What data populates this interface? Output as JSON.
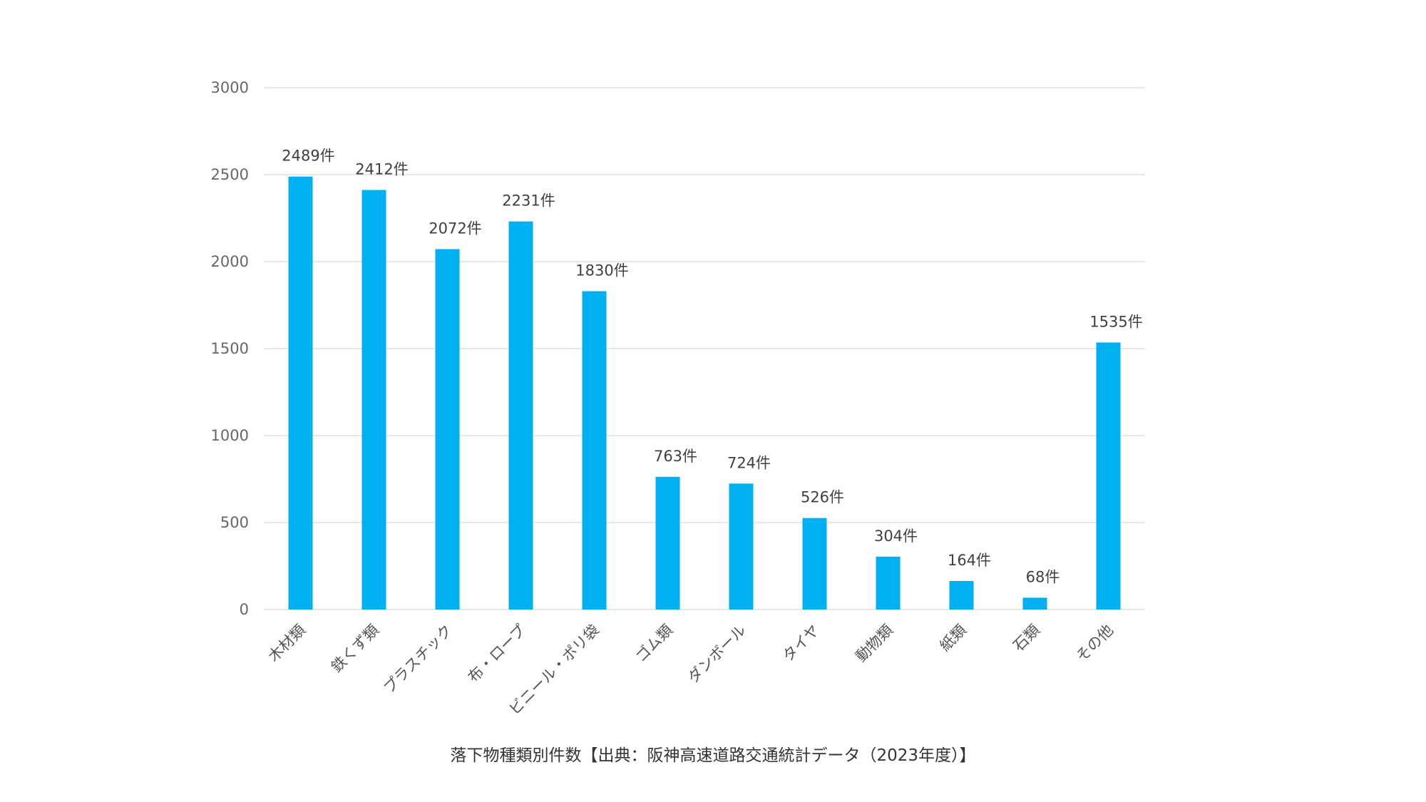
{
  "chart_data": {
    "type": "bar",
    "title": "落下物種類別件数【出典：阪神高速道路交通統計データ（2023年度）】",
    "xlabel": "",
    "ylabel": "",
    "ylim": [
      0,
      3000
    ],
    "y_ticks": [
      0,
      500,
      1000,
      1500,
      2000,
      2500,
      3000
    ],
    "grid": true,
    "legend": "none",
    "bar_color": "#00B0F0",
    "categories": [
      "木材類",
      "鉄くず類",
      "プラスチック",
      "布・ロープ",
      "ビニール・ポリ袋",
      "ゴム類",
      "ダンボール",
      "タイヤ",
      "動物類",
      "紙類",
      "石類",
      "その他"
    ],
    "values": [
      2489,
      2412,
      2072,
      2231,
      1830,
      763,
      724,
      526,
      304,
      164,
      68,
      1535
    ],
    "data_labels": [
      "2489件",
      "2412件",
      "2072件",
      "2231件",
      "1830件",
      "763件",
      "724件",
      "526件",
      "304件",
      "164件",
      "68件",
      "1535件"
    ]
  }
}
